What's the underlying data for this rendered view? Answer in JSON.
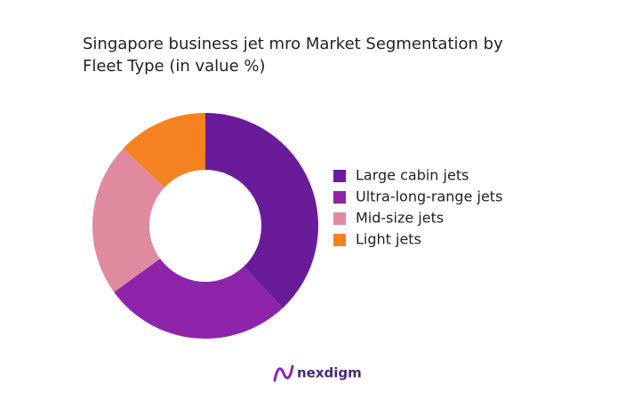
{
  "chart_data": {
    "type": "donut",
    "title": "Singapore business jet mro Market Segmentation by Fleet Type (in value %)",
    "categories": [
      "Large cabin jets",
      "Ultra-long-range jets",
      "Mid-size jets",
      "Light jets"
    ],
    "values": [
      38,
      27,
      22,
      13
    ],
    "colors": [
      "#6a1b9a",
      "#8e24aa",
      "#e08aa0",
      "#f58220"
    ],
    "legend": "right"
  },
  "brand": "nexdigm"
}
